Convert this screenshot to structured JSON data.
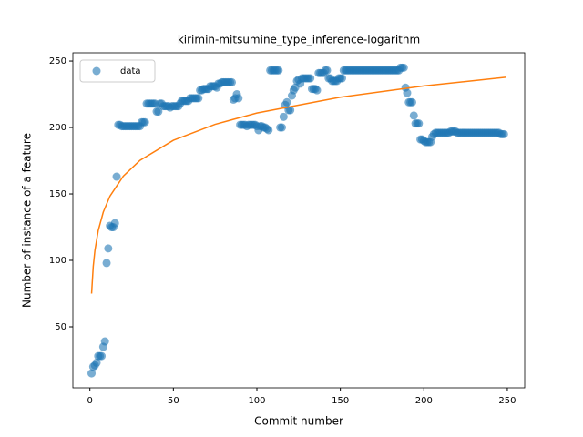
{
  "chart_data": {
    "type": "scatter",
    "title": "kirimin-mitsumine_type_inference-logarithm",
    "xlabel": "Commit number",
    "ylabel": "Number of instance of a feature",
    "xlim": [
      -10.2,
      260.4
    ],
    "ylim": [
      4.1,
      256.2
    ],
    "xticks": [
      0,
      50,
      100,
      150,
      200,
      250
    ],
    "yticks": [
      50,
      100,
      150,
      200,
      250
    ],
    "legend": "upper left",
    "series": [
      {
        "name": "data",
        "type": "scatter",
        "color": "#1f77b4",
        "x": [
          1,
          2,
          3,
          4,
          5,
          6,
          7,
          8,
          9,
          10,
          11,
          12,
          13,
          14,
          15,
          16,
          17,
          18,
          19,
          20,
          21,
          22,
          23,
          24,
          25,
          26,
          27,
          28,
          29,
          30,
          31,
          32,
          33,
          34,
          35,
          36,
          37,
          38,
          39,
          40,
          41,
          42,
          43,
          44,
          45,
          46,
          47,
          48,
          49,
          50,
          51,
          52,
          53,
          54,
          55,
          56,
          57,
          58,
          59,
          60,
          61,
          62,
          63,
          64,
          65,
          66,
          67,
          68,
          69,
          70,
          71,
          72,
          73,
          74,
          75,
          76,
          77,
          78,
          79,
          80,
          81,
          82,
          83,
          84,
          85,
          86,
          87,
          88,
          89,
          90,
          91,
          92,
          93,
          94,
          95,
          96,
          97,
          98,
          99,
          100,
          101,
          102,
          103,
          104,
          105,
          106,
          107,
          108,
          109,
          110,
          111,
          112,
          113,
          114,
          115,
          116,
          117,
          118,
          119,
          120,
          121,
          122,
          123,
          124,
          125,
          126,
          127,
          128,
          129,
          130,
          131,
          132,
          133,
          134,
          135,
          136,
          137,
          138,
          139,
          140,
          141,
          142,
          143,
          144,
          145,
          146,
          147,
          148,
          149,
          150,
          151,
          152,
          153,
          154,
          155,
          156,
          157,
          158,
          159,
          160,
          161,
          162,
          163,
          164,
          165,
          166,
          167,
          168,
          169,
          170,
          171,
          172,
          173,
          174,
          175,
          176,
          177,
          178,
          179,
          180,
          181,
          182,
          183,
          184,
          185,
          186,
          187,
          188,
          189,
          190,
          191,
          192,
          193,
          194,
          195,
          196,
          197,
          198,
          199,
          200,
          201,
          202,
          203,
          204,
          205,
          206,
          207,
          208,
          209,
          210,
          211,
          212,
          213,
          214,
          215,
          216,
          217,
          218,
          219,
          220,
          221,
          222,
          223,
          224,
          225,
          226,
          227,
          228,
          229,
          230,
          231,
          232,
          233,
          234,
          235,
          236,
          237,
          238,
          239,
          240,
          241,
          242,
          243,
          244,
          245,
          246,
          247,
          248
        ],
        "values": [
          15,
          20,
          21,
          23,
          28,
          28,
          28,
          35,
          39,
          98,
          109,
          126,
          125,
          125,
          128,
          163,
          202,
          202,
          201,
          201,
          201,
          201,
          201,
          201,
          201,
          201,
          201,
          201,
          201,
          201,
          204,
          204,
          204,
          218,
          218,
          218,
          218,
          218,
          218,
          212,
          212,
          218,
          218,
          216,
          216,
          216,
          216,
          215,
          216,
          216,
          216,
          216,
          216,
          218,
          220,
          220,
          220,
          220,
          220,
          222,
          222,
          222,
          222,
          222,
          222,
          228,
          228,
          229,
          229,
          229,
          229,
          231,
          231,
          231,
          231,
          230,
          233,
          233,
          234,
          234,
          234,
          234,
          234,
          234,
          234,
          221,
          222,
          225,
          222,
          202,
          202,
          202,
          202,
          201,
          202,
          202,
          202,
          202,
          202,
          201,
          198,
          201,
          201,
          200,
          200,
          199,
          198,
          243,
          243,
          243,
          243,
          243,
          243,
          200,
          200,
          208,
          217,
          219,
          213,
          213,
          224,
          228,
          230,
          235,
          236,
          233,
          237,
          237,
          237,
          237,
          237,
          237,
          229,
          229,
          229,
          228,
          241,
          241,
          241,
          241,
          243,
          243,
          237,
          237,
          235,
          235,
          235,
          235,
          237,
          237,
          237,
          243,
          243,
          243,
          243,
          243,
          243,
          243,
          243,
          243,
          243,
          243,
          243,
          243,
          243,
          243,
          243,
          243,
          243,
          243,
          243,
          243,
          243,
          243,
          243,
          243,
          243,
          243,
          243,
          243,
          243,
          243,
          243,
          243,
          243,
          245,
          245,
          245,
          230,
          226,
          219,
          219,
          219,
          209,
          203,
          203,
          203,
          191,
          191,
          190,
          189,
          189,
          189,
          189,
          193,
          195,
          196,
          196,
          196,
          196,
          196,
          196,
          196,
          196,
          196,
          197,
          197,
          197,
          197,
          196,
          196,
          196,
          196,
          196,
          196,
          196,
          196,
          196,
          196,
          196,
          196,
          196,
          196,
          196,
          196,
          196,
          196,
          196,
          196,
          196,
          196,
          196,
          196,
          196,
          196,
          195,
          195,
          195
        ]
      },
      {
        "type": "line",
        "color": "#ff7f0e",
        "x": [
          1,
          2,
          3,
          5,
          8,
          12,
          20,
          30,
          50,
          75,
          100,
          150,
          200,
          249
        ],
        "values": [
          75,
          95.4,
          107.4,
          122.5,
          136.3,
          148.3,
          163.4,
          175.3,
          190.4,
          202.4,
          210.9,
          222.8,
          231.3,
          237.8
        ]
      }
    ]
  }
}
